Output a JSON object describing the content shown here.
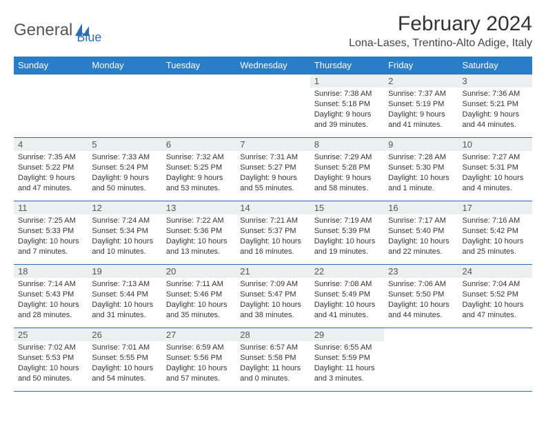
{
  "logo": {
    "text1": "General",
    "text2": "Blue"
  },
  "title": "February 2024",
  "location": "Lona-Lases, Trentino-Alto Adige, Italy",
  "colors": {
    "header_bg": "#2a7ec7",
    "header_text": "#ffffff",
    "daynum_bg": "#eceeef",
    "border": "#2a6fb5",
    "logo_gray": "#555555",
    "logo_blue": "#2a6fb5"
  },
  "days_of_week": [
    "Sunday",
    "Monday",
    "Tuesday",
    "Wednesday",
    "Thursday",
    "Friday",
    "Saturday"
  ],
  "weeks": [
    [
      null,
      null,
      null,
      null,
      {
        "n": "1",
        "sr": "Sunrise: 7:38 AM",
        "ss": "Sunset: 5:18 PM",
        "dl": "Daylight: 9 hours and 39 minutes."
      },
      {
        "n": "2",
        "sr": "Sunrise: 7:37 AM",
        "ss": "Sunset: 5:19 PM",
        "dl": "Daylight: 9 hours and 41 minutes."
      },
      {
        "n": "3",
        "sr": "Sunrise: 7:36 AM",
        "ss": "Sunset: 5:21 PM",
        "dl": "Daylight: 9 hours and 44 minutes."
      }
    ],
    [
      {
        "n": "4",
        "sr": "Sunrise: 7:35 AM",
        "ss": "Sunset: 5:22 PM",
        "dl": "Daylight: 9 hours and 47 minutes."
      },
      {
        "n": "5",
        "sr": "Sunrise: 7:33 AM",
        "ss": "Sunset: 5:24 PM",
        "dl": "Daylight: 9 hours and 50 minutes."
      },
      {
        "n": "6",
        "sr": "Sunrise: 7:32 AM",
        "ss": "Sunset: 5:25 PM",
        "dl": "Daylight: 9 hours and 53 minutes."
      },
      {
        "n": "7",
        "sr": "Sunrise: 7:31 AM",
        "ss": "Sunset: 5:27 PM",
        "dl": "Daylight: 9 hours and 55 minutes."
      },
      {
        "n": "8",
        "sr": "Sunrise: 7:29 AM",
        "ss": "Sunset: 5:28 PM",
        "dl": "Daylight: 9 hours and 58 minutes."
      },
      {
        "n": "9",
        "sr": "Sunrise: 7:28 AM",
        "ss": "Sunset: 5:30 PM",
        "dl": "Daylight: 10 hours and 1 minute."
      },
      {
        "n": "10",
        "sr": "Sunrise: 7:27 AM",
        "ss": "Sunset: 5:31 PM",
        "dl": "Daylight: 10 hours and 4 minutes."
      }
    ],
    [
      {
        "n": "11",
        "sr": "Sunrise: 7:25 AM",
        "ss": "Sunset: 5:33 PM",
        "dl": "Daylight: 10 hours and 7 minutes."
      },
      {
        "n": "12",
        "sr": "Sunrise: 7:24 AM",
        "ss": "Sunset: 5:34 PM",
        "dl": "Daylight: 10 hours and 10 minutes."
      },
      {
        "n": "13",
        "sr": "Sunrise: 7:22 AM",
        "ss": "Sunset: 5:36 PM",
        "dl": "Daylight: 10 hours and 13 minutes."
      },
      {
        "n": "14",
        "sr": "Sunrise: 7:21 AM",
        "ss": "Sunset: 5:37 PM",
        "dl": "Daylight: 10 hours and 16 minutes."
      },
      {
        "n": "15",
        "sr": "Sunrise: 7:19 AM",
        "ss": "Sunset: 5:39 PM",
        "dl": "Daylight: 10 hours and 19 minutes."
      },
      {
        "n": "16",
        "sr": "Sunrise: 7:17 AM",
        "ss": "Sunset: 5:40 PM",
        "dl": "Daylight: 10 hours and 22 minutes."
      },
      {
        "n": "17",
        "sr": "Sunrise: 7:16 AM",
        "ss": "Sunset: 5:42 PM",
        "dl": "Daylight: 10 hours and 25 minutes."
      }
    ],
    [
      {
        "n": "18",
        "sr": "Sunrise: 7:14 AM",
        "ss": "Sunset: 5:43 PM",
        "dl": "Daylight: 10 hours and 28 minutes."
      },
      {
        "n": "19",
        "sr": "Sunrise: 7:13 AM",
        "ss": "Sunset: 5:44 PM",
        "dl": "Daylight: 10 hours and 31 minutes."
      },
      {
        "n": "20",
        "sr": "Sunrise: 7:11 AM",
        "ss": "Sunset: 5:46 PM",
        "dl": "Daylight: 10 hours and 35 minutes."
      },
      {
        "n": "21",
        "sr": "Sunrise: 7:09 AM",
        "ss": "Sunset: 5:47 PM",
        "dl": "Daylight: 10 hours and 38 minutes."
      },
      {
        "n": "22",
        "sr": "Sunrise: 7:08 AM",
        "ss": "Sunset: 5:49 PM",
        "dl": "Daylight: 10 hours and 41 minutes."
      },
      {
        "n": "23",
        "sr": "Sunrise: 7:06 AM",
        "ss": "Sunset: 5:50 PM",
        "dl": "Daylight: 10 hours and 44 minutes."
      },
      {
        "n": "24",
        "sr": "Sunrise: 7:04 AM",
        "ss": "Sunset: 5:52 PM",
        "dl": "Daylight: 10 hours and 47 minutes."
      }
    ],
    [
      {
        "n": "25",
        "sr": "Sunrise: 7:02 AM",
        "ss": "Sunset: 5:53 PM",
        "dl": "Daylight: 10 hours and 50 minutes."
      },
      {
        "n": "26",
        "sr": "Sunrise: 7:01 AM",
        "ss": "Sunset: 5:55 PM",
        "dl": "Daylight: 10 hours and 54 minutes."
      },
      {
        "n": "27",
        "sr": "Sunrise: 6:59 AM",
        "ss": "Sunset: 5:56 PM",
        "dl": "Daylight: 10 hours and 57 minutes."
      },
      {
        "n": "28",
        "sr": "Sunrise: 6:57 AM",
        "ss": "Sunset: 5:58 PM",
        "dl": "Daylight: 11 hours and 0 minutes."
      },
      {
        "n": "29",
        "sr": "Sunrise: 6:55 AM",
        "ss": "Sunset: 5:59 PM",
        "dl": "Daylight: 11 hours and 3 minutes."
      },
      null,
      null
    ]
  ]
}
